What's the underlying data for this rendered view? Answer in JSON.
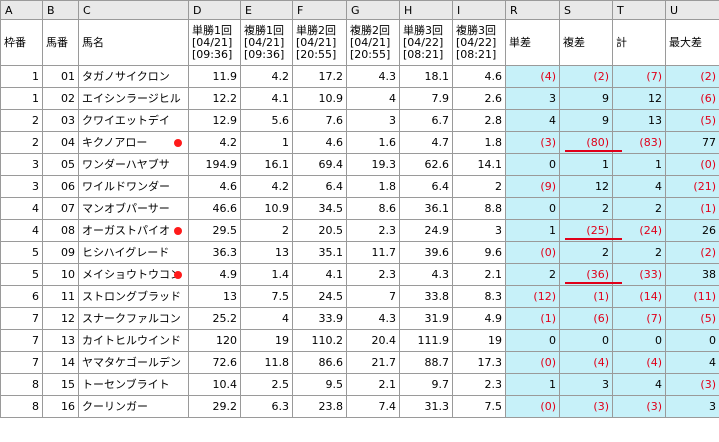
{
  "columns": [
    "A",
    "B",
    "C",
    "D",
    "E",
    "F",
    "G",
    "H",
    "I",
    "R",
    "S",
    "T",
    "U"
  ],
  "headers": {
    "frame": "枠番",
    "horse_no": "馬番",
    "horse_name": "馬名",
    "win1": [
      "単勝1回",
      "[04/21]",
      "[09:36]"
    ],
    "place1": [
      "複勝1回",
      "[04/21]",
      "[09:36]"
    ],
    "win2": [
      "単勝2回",
      "[04/21]",
      "[20:55]"
    ],
    "place2": [
      "複勝2回",
      "[04/21]",
      "[20:55]"
    ],
    "win3": [
      "単勝3回",
      "[04/22]",
      "[08:21]"
    ],
    "place3": [
      "複勝3回",
      "[04/22]",
      "[08:21]"
    ],
    "win_diff": "単差",
    "place_diff": "複差",
    "total": "計",
    "max_diff": "最大差"
  },
  "rows": [
    {
      "frame": "1",
      "no": "01",
      "name": "タガノサイクロン",
      "marked": false,
      "d": "11.9",
      "e": "4.2",
      "f": "17.2",
      "g": "4.3",
      "h": "18.1",
      "i": "4.6",
      "r": "(4)",
      "s": "(2)",
      "t": "(7)",
      "u": "(2)"
    },
    {
      "frame": "1",
      "no": "02",
      "name": "エイシンラージヒル",
      "marked": false,
      "d": "12.2",
      "e": "4.1",
      "f": "10.9",
      "g": "4",
      "h": "7.9",
      "i": "2.6",
      "r": "3",
      "s": "9",
      "t": "12",
      "u": "(6)"
    },
    {
      "frame": "2",
      "no": "03",
      "name": "クワイエットデイ",
      "marked": false,
      "d": "12.9",
      "e": "5.6",
      "f": "7.6",
      "g": "3",
      "h": "6.7",
      "i": "2.8",
      "r": "4",
      "s": "9",
      "t": "13",
      "u": "(5)"
    },
    {
      "frame": "2",
      "no": "04",
      "name": "キクノアロー",
      "marked": true,
      "d": "4.2",
      "e": "1",
      "f": "4.6",
      "g": "1.6",
      "h": "4.7",
      "i": "1.8",
      "r": "(3)",
      "s": "(80)",
      "t": "(83)",
      "u": "77"
    },
    {
      "frame": "3",
      "no": "05",
      "name": "ワンダーハヤブサ",
      "marked": false,
      "d": "194.9",
      "e": "16.1",
      "f": "69.4",
      "g": "19.3",
      "h": "62.6",
      "i": "14.1",
      "r": "0",
      "s": "1",
      "t": "1",
      "u": "(0)"
    },
    {
      "frame": "3",
      "no": "06",
      "name": "ワイルドワンダー",
      "marked": false,
      "d": "4.6",
      "e": "4.2",
      "f": "6.4",
      "g": "1.8",
      "h": "6.4",
      "i": "2",
      "r": "(9)",
      "s": "12",
      "t": "4",
      "u": "(21)"
    },
    {
      "frame": "4",
      "no": "07",
      "name": "マンオブパーサー",
      "marked": false,
      "d": "46.6",
      "e": "10.9",
      "f": "34.5",
      "g": "8.6",
      "h": "36.1",
      "i": "8.8",
      "r": "0",
      "s": "2",
      "t": "2",
      "u": "(1)"
    },
    {
      "frame": "4",
      "no": "08",
      "name": "オーガストパイオ",
      "marked": true,
      "d": "29.5",
      "e": "2",
      "f": "20.5",
      "g": "2.3",
      "h": "24.9",
      "i": "3",
      "r": "1",
      "s": "(25)",
      "t": "(24)",
      "u": "26"
    },
    {
      "frame": "5",
      "no": "09",
      "name": "ヒシハイグレード",
      "marked": false,
      "d": "36.3",
      "e": "13",
      "f": "35.1",
      "g": "11.7",
      "h": "39.6",
      "i": "9.6",
      "r": "(0)",
      "s": "2",
      "t": "2",
      "u": "(2)"
    },
    {
      "frame": "5",
      "no": "10",
      "name": "メイショウトウコン",
      "marked": true,
      "d": "4.9",
      "e": "1.4",
      "f": "4.1",
      "g": "2.3",
      "h": "4.3",
      "i": "2.1",
      "r": "2",
      "s": "(36)",
      "t": "(33)",
      "u": "38"
    },
    {
      "frame": "6",
      "no": "11",
      "name": "ストロングブラッド",
      "marked": false,
      "d": "13",
      "e": "7.5",
      "f": "24.5",
      "g": "7",
      "h": "33.8",
      "i": "8.3",
      "r": "(12)",
      "s": "(1)",
      "t": "(14)",
      "u": "(11)"
    },
    {
      "frame": "7",
      "no": "12",
      "name": "スナークファルコン",
      "marked": false,
      "d": "25.2",
      "e": "4",
      "f": "33.9",
      "g": "4.3",
      "h": "31.9",
      "i": "4.9",
      "r": "(1)",
      "s": "(6)",
      "t": "(7)",
      "u": "(5)"
    },
    {
      "frame": "7",
      "no": "13",
      "name": "カイトヒルウインド",
      "marked": false,
      "d": "120",
      "e": "19",
      "f": "110.2",
      "g": "20.4",
      "h": "111.9",
      "i": "19",
      "r": "0",
      "s": "0",
      "t": "0",
      "u": "0"
    },
    {
      "frame": "7",
      "no": "14",
      "name": "ヤマタケゴールデン",
      "marked": false,
      "d": "72.6",
      "e": "11.8",
      "f": "86.6",
      "g": "21.7",
      "h": "88.7",
      "i": "17.3",
      "r": "(0)",
      "s": "(4)",
      "t": "(4)",
      "u": "4"
    },
    {
      "frame": "8",
      "no": "15",
      "name": "トーセンブライト",
      "marked": false,
      "d": "10.4",
      "e": "2.5",
      "f": "9.5",
      "g": "2.1",
      "h": "9.7",
      "i": "2.3",
      "r": "1",
      "s": "3",
      "t": "4",
      "u": "(3)"
    },
    {
      "frame": "8",
      "no": "16",
      "name": "クーリンガー",
      "marked": false,
      "d": "29.2",
      "e": "6.3",
      "f": "23.8",
      "g": "7.4",
      "h": "31.3",
      "i": "7.5",
      "r": "(0)",
      "s": "(3)",
      "t": "(3)",
      "u": "3"
    }
  ],
  "colors": {
    "highlight": "#c7f1f9",
    "negative": "#e0001a",
    "header_bg": "#e9e9e9",
    "marker": "#ff1a1a"
  }
}
